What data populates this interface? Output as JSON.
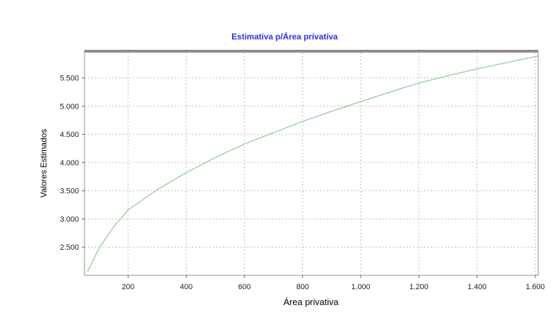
{
  "chart_data": {
    "type": "line",
    "title": "Estimativa p/Área privativa",
    "xlabel": "Área privativa",
    "ylabel": "Valores Estimados",
    "xlim": [
      50,
      1610
    ],
    "ylim": [
      2000,
      5950
    ],
    "x_ticks": [
      200,
      400,
      600,
      800,
      1000,
      1200,
      1400,
      1600
    ],
    "x_tick_labels": [
      "200",
      "400",
      "600",
      "800",
      "1.000",
      "1.200",
      "1.400",
      "1.600"
    ],
    "y_ticks": [
      2500,
      3000,
      3500,
      4000,
      4500,
      5000,
      5500
    ],
    "y_tick_labels": [
      "2.500",
      "3.000",
      "3.500",
      "4.000",
      "4.500",
      "5.000",
      "5.500"
    ],
    "grid": true,
    "series": [
      {
        "x": [
          60,
          100,
          150,
          200,
          300,
          400,
          500,
          600,
          700,
          800,
          900,
          1000,
          1100,
          1200,
          1300,
          1400,
          1500,
          1610
        ],
        "y": [
          2060,
          2480,
          2860,
          3160,
          3520,
          3820,
          4090,
          4330,
          4530,
          4730,
          4910,
          5080,
          5250,
          5410,
          5540,
          5660,
          5770,
          5890
        ]
      }
    ],
    "colors": {
      "line": "#9ccf9c",
      "title": "#2b2bff",
      "frame": "#8c8c8c",
      "grid": "#b8b8b8"
    }
  }
}
